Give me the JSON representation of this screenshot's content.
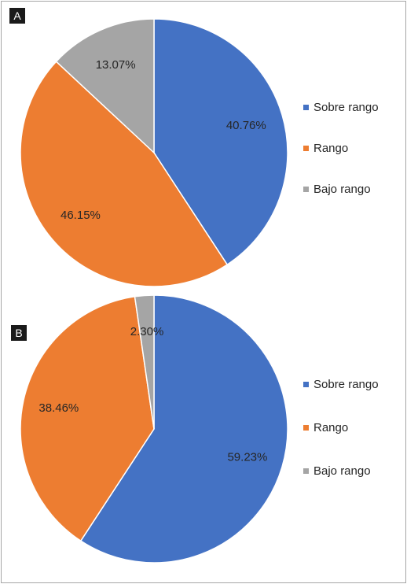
{
  "chart_data": [
    {
      "type": "pie",
      "panel_label": "A",
      "categories": [
        "Sobre rango",
        "Rango",
        "Bajo rango"
      ],
      "values": [
        40.76,
        46.15,
        13.07
      ],
      "data_labels": [
        "40.76%",
        "46.15%",
        "13.07%"
      ],
      "colors": [
        "#4472c4",
        "#ed7d31",
        "#a5a5a5"
      ],
      "legend_position": "right"
    },
    {
      "type": "pie",
      "panel_label": "B",
      "categories": [
        "Sobre rango",
        "Rango",
        "Bajo rango"
      ],
      "values": [
        59.23,
        38.46,
        2.3
      ],
      "data_labels": [
        "59.23%",
        "38.46%",
        "2.30%"
      ],
      "colors": [
        "#4472c4",
        "#ed7d31",
        "#a5a5a5"
      ],
      "legend_position": "right"
    }
  ]
}
